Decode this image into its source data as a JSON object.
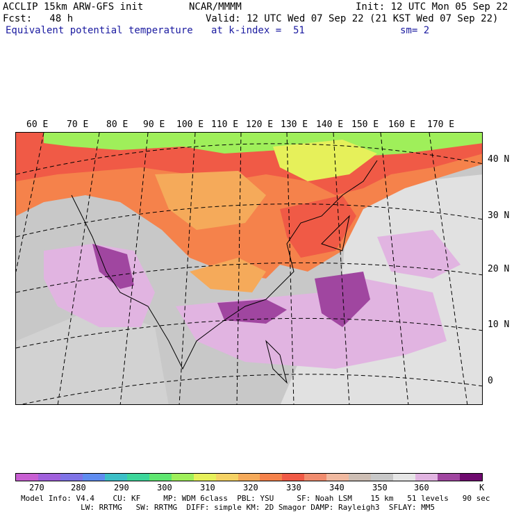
{
  "header": {
    "model": "ACCLIP 15km ARW-GFS init",
    "org": "NCAR/MMMM",
    "init": "Init: 12 UTC Mon 05 Sep 22",
    "fcst": "Fcst:   48 h",
    "valid": "Valid: 12 UTC Wed 07 Sep 22 (21 KST Wed 07 Sep 22)",
    "field": "Equivalent potential temperature",
    "level": "at k-index =  51",
    "smooth": "sm= 2"
  },
  "map": {
    "lon_labels": [
      "60 E",
      "70 E",
      "80 E",
      "90 E",
      "100 E",
      "110 E",
      "120 E",
      "130 E",
      "140 E",
      "150 E",
      "160 E",
      "170 E"
    ],
    "lat_labels": [
      "40 N",
      "30 N",
      "20 N",
      "10 N",
      "0"
    ]
  },
  "colorbar": {
    "colors": [
      "#c85fd2",
      "#a060dc",
      "#7f73e6",
      "#5f8cf0",
      "#3cbfc7",
      "#3cd69a",
      "#5fe670",
      "#9fef5a",
      "#e6f05a",
      "#f5d264",
      "#f5aa5a",
      "#f5824b",
      "#f05a46",
      "#f08c6e",
      "#f0b9a0",
      "#cdbeb4",
      "#c8c8c8",
      "#e6e6e6",
      "#e1b4e1",
      "#a046a0",
      "#6e0a6e"
    ],
    "tick_labels": [
      "270",
      "280",
      "290",
      "300",
      "310",
      "320",
      "330",
      "340",
      "350",
      "360"
    ],
    "unit": "K"
  },
  "footer": {
    "line1": "Model Info: V4.4    CU: KF     MP: WDM 6class  PBL: YSU     SF: Noah LSM    15 km   51 levels   90 sec",
    "line2": "             LW: RRTMG   SW: RRTMG  DIFF: simple KM: 2D Smagor DAMP: Rayleigh3  SFLAY: MM5"
  }
}
